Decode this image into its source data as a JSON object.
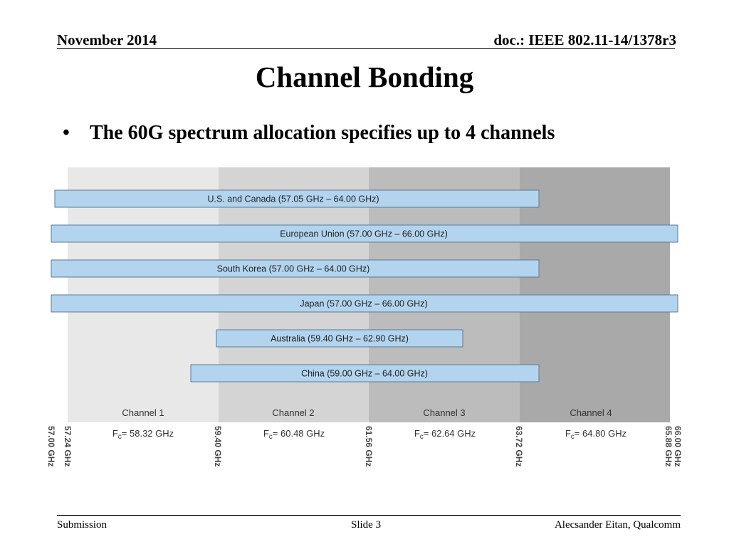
{
  "header": {
    "date": "November 2014",
    "doc_id": "doc.: IEEE 802.11-14/1378r3"
  },
  "title": "Channel Bonding",
  "bullet": {
    "symbol": "•",
    "text": "The 60G spectrum allocation specifies up to 4 channels"
  },
  "figure": {
    "bands": [
      {
        "label": "U.S. and Canada (57.05 GHz – 64.00 GHz)",
        "start_ghz": 57.05,
        "end_ghz": 64.0
      },
      {
        "label": "European Union (57.00 GHz – 66.00 GHz)",
        "start_ghz": 57.0,
        "end_ghz": 66.0
      },
      {
        "label": "South Korea (57.00 GHz – 64.00 GHz)",
        "start_ghz": 57.0,
        "end_ghz": 64.0
      },
      {
        "label": "Japan (57.00 GHz – 66.00 GHz)",
        "start_ghz": 57.0,
        "end_ghz": 66.0
      },
      {
        "label": "Australia (59.40 GHz – 62.90 GHz)",
        "start_ghz": 59.4,
        "end_ghz": 62.9
      },
      {
        "label": "China (59.00 GHz – 64.00 GHz)",
        "start_ghz": 59.0,
        "end_ghz": 64.0
      }
    ],
    "channels": [
      {
        "label": "Channel 1",
        "fc_prefix": "F",
        "fc_sub": "c",
        "fc_value": "= 58.32 GHz",
        "start_ghz": 57.24,
        "end_ghz": 59.4,
        "color": "#e8e8e8"
      },
      {
        "label": "Channel 2",
        "fc_prefix": "F",
        "fc_sub": "c",
        "fc_value": "= 60.48 GHz",
        "start_ghz": 59.4,
        "end_ghz": 61.56,
        "color": "#d4d4d4"
      },
      {
        "label": "Channel 3",
        "fc_prefix": "F",
        "fc_sub": "c",
        "fc_value": "= 62.64 GHz",
        "start_ghz": 61.56,
        "end_ghz": 63.72,
        "color": "#bcbcbc"
      },
      {
        "label": "Channel 4",
        "fc_prefix": "F",
        "fc_sub": "c",
        "fc_value": "= 64.80 GHz",
        "start_ghz": 63.72,
        "end_ghz": 65.88,
        "color": "#a9a9a9"
      }
    ],
    "ticks": [
      "57.00 GHz",
      "57.24 GHz",
      "59.40 GHz",
      "61.56 GHz",
      "63.72 GHz",
      "65.88 GHz",
      "66.00 GHz"
    ],
    "band_color": "#b3d4ee",
    "band_border": "#5a7a96"
  },
  "footer": {
    "left": "Submission",
    "center": "Slide 3",
    "right": "Alecsander Eitan, Qualcomm"
  }
}
